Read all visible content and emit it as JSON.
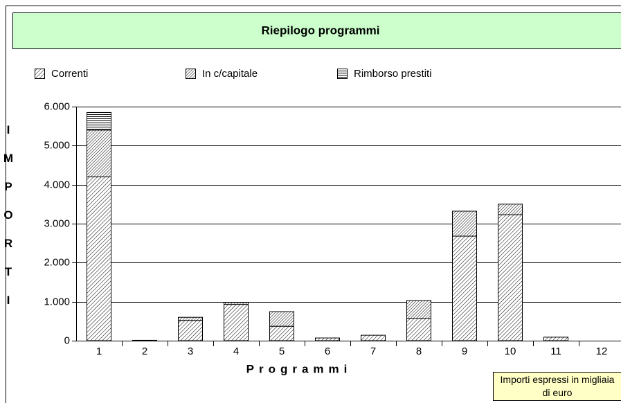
{
  "chart_data": {
    "type": "bar",
    "stacked": true,
    "title": "Riepilogo programmi",
    "x_label": "Programmi",
    "y_label": "IMPORTI",
    "note": "Importi espressi in migliaia di euro",
    "categories": [
      "1",
      "2",
      "3",
      "4",
      "5",
      "6",
      "7",
      "8",
      "9",
      "10",
      "11",
      "12"
    ],
    "series": [
      {
        "name": "Correnti",
        "color": "#000000",
        "hatch": "diagonal",
        "values": [
          4200,
          10,
          520,
          930,
          370,
          70,
          140,
          570,
          2680,
          3230,
          90,
          0
        ]
      },
      {
        "name": "In c/capitale",
        "color": "#000000",
        "hatch": "diagonal-dense",
        "values": [
          1200,
          0,
          80,
          50,
          375,
          0,
          0,
          460,
          640,
          270,
          0,
          0
        ]
      },
      {
        "name": "Rimborso prestiti",
        "color": "#000000",
        "hatch": "horizontal",
        "values": [
          450,
          0,
          0,
          0,
          0,
          0,
          0,
          0,
          0,
          0,
          0,
          0
        ]
      }
    ],
    "ylim": [
      0,
      6000
    ],
    "yticks": [
      0,
      {
        "value": 1000,
        "label": "1.000"
      },
      {
        "value": 2000,
        "label": "2.000"
      },
      {
        "value": 3000,
        "label": "3.000"
      },
      {
        "value": 4000,
        "label": "4.000"
      },
      {
        "value": 5000,
        "label": "5.000"
      },
      {
        "value": 6000,
        "label": "6.000"
      }
    ],
    "grid": true,
    "legend": "top"
  }
}
